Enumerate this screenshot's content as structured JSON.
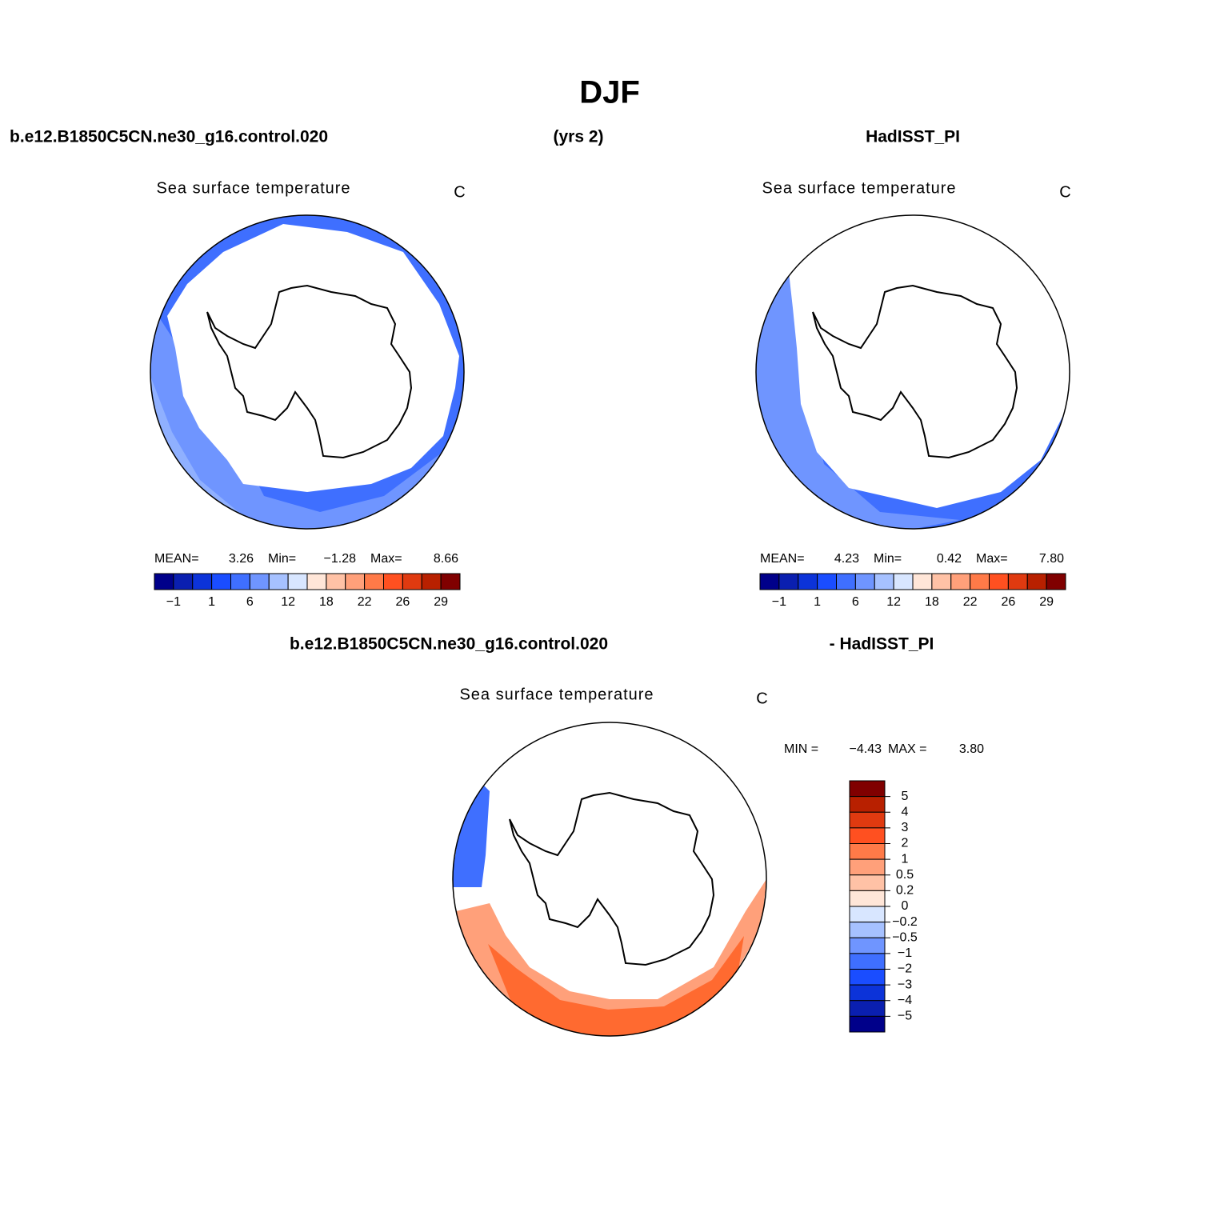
{
  "title": "DJF",
  "header": {
    "left": "b.e12.B1850C5CN.ne30_g16.control.020",
    "center": "(yrs 2)",
    "right": "HadISST_PI"
  },
  "panels": [
    {
      "title": "Sea surface temperature",
      "units": "C",
      "stats": [
        "MEAN=",
        "3.26",
        "Min=",
        "−1.28",
        "Max=",
        "8.66"
      ]
    },
    {
      "title": "Sea surface temperature",
      "units": "C",
      "stats": [
        "MEAN=",
        "4.23",
        "Min=",
        "0.42",
        "Max=",
        "7.80"
      ]
    }
  ],
  "colorbar": {
    "colors": [
      "#00008a",
      "#0a1fb0",
      "#0c33d9",
      "#1a4dff",
      "#3f6fff",
      "#6f95ff",
      "#a6c1ff",
      "#d8e6ff",
      "#ffe6d8",
      "#ffc2a6",
      "#ffa07a",
      "#ff7a48",
      "#ff5020",
      "#e03a10",
      "#b82000",
      "#800000"
    ],
    "labels": [
      "−1",
      "1",
      "6",
      "12",
      "18",
      "22",
      "26",
      "29"
    ]
  },
  "diff_header": {
    "left": "b.e12.B1850C5CN.ne30_g16.control.020",
    "right": "- HadISST_PI"
  },
  "diff_panel": {
    "title": "Sea surface temperature",
    "units": "C",
    "stats": [
      "MIN =",
      "−4.43",
      "MAX =",
      "3.80"
    ]
  },
  "diff_colorbar": {
    "colors": [
      "#800000",
      "#b82000",
      "#e03a10",
      "#ff5020",
      "#ff7a48",
      "#ffa07a",
      "#ffc2a6",
      "#ffe6d8",
      "#d8e6ff",
      "#a6c1ff",
      "#6f95ff",
      "#3f6fff",
      "#1a4dff",
      "#0c33d9",
      "#0a1fb0",
      "#00008a"
    ],
    "labels": [
      "5",
      "4",
      "3",
      "2",
      "1",
      "0.5",
      "0.2",
      "0",
      "−0.2",
      "−0.5",
      "−1",
      "−2",
      "−3",
      "−4",
      "−5"
    ]
  }
}
